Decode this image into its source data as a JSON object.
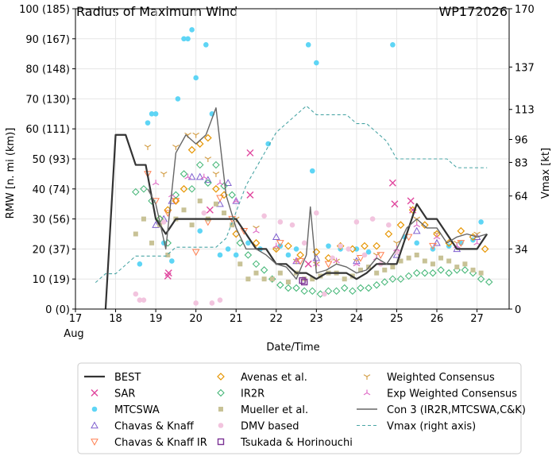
{
  "chart_data": {
    "type": "line",
    "title": "Radius of Maximum Wind",
    "storm_id": "WP172026",
    "xlabel": "Date/Time",
    "ylabel_left": "RMW [n. mi (km)]",
    "ylabel_right": "Vmax [kt]",
    "xlim": [
      17,
      27.8
    ],
    "ylim": [
      0,
      100
    ],
    "y2lim": [
      0,
      170
    ],
    "x_ticks": [
      17,
      18,
      19,
      20,
      21,
      22,
      23,
      24,
      25,
      26,
      27
    ],
    "x_tick_labels": [
      "17",
      "18",
      "19",
      "20",
      "21",
      "22",
      "23",
      "24",
      "25",
      "26",
      "27"
    ],
    "x_month_label": "Aug",
    "y_ticks": [
      0,
      10,
      20,
      30,
      40,
      50,
      60,
      70,
      80,
      90,
      100
    ],
    "y_tick_labels": [
      "0 (0)",
      "10 (19)",
      "20 (37)",
      "30 (56)",
      "40 (74)",
      "50 (93)",
      "60 (111)",
      "70 (130)",
      "80 (148)",
      "90 (167)",
      "100 (185)"
    ],
    "y2_ticks": [
      0,
      34,
      64,
      83,
      96,
      113,
      137,
      170
    ],
    "y2_tick_labels": [
      "0",
      "34",
      "64",
      "83",
      "96",
      "113",
      "137",
      "170"
    ],
    "grid": true,
    "legend_placement": "bottom",
    "series": [
      {
        "name": "BEST",
        "kind": "line",
        "color": "#333333",
        "x": [
          17.75,
          18.0,
          18.25,
          18.5,
          18.75,
          19.0,
          19.25,
          19.5,
          19.75,
          20.0,
          20.25,
          20.5,
          20.75,
          21.0,
          21.25,
          21.5,
          21.75,
          22.0,
          22.25,
          22.5,
          22.75,
          23.0,
          23.25,
          23.5,
          23.75,
          24.0,
          24.25,
          24.5,
          24.75,
          25.0,
          25.25,
          25.5,
          25.75,
          26.0,
          26.25,
          26.5,
          26.75,
          27.0,
          27.25
        ],
        "y": [
          0,
          58,
          58,
          48,
          48,
          30,
          25,
          30,
          30,
          30,
          30,
          30,
          30,
          30,
          25,
          20,
          20,
          15,
          15,
          12,
          12,
          10,
          12,
          12,
          12,
          10,
          12,
          15,
          15,
          15,
          25,
          35,
          30,
          30,
          25,
          20,
          20,
          20,
          25
        ]
      },
      {
        "name": "SAR",
        "kind": "marker",
        "marker": "x",
        "color": "#e0479e",
        "x": [
          19.3,
          19.32,
          20.35,
          21.35,
          21.35,
          22.8,
          24.9,
          24.95,
          25.35,
          25.4
        ],
        "y": [
          11,
          12,
          33,
          52,
          38,
          15,
          42,
          35,
          36,
          33
        ]
      },
      {
        "name": "MTCSWA",
        "kind": "marker",
        "marker": "circle",
        "color": "#5ed5f5",
        "x": [
          18.6,
          18.8,
          18.9,
          19.0,
          19.2,
          19.4,
          19.55,
          19.7,
          19.8,
          19.9,
          20.0,
          20.1,
          20.25,
          20.4,
          20.6,
          20.8,
          21.0,
          21.3,
          21.6,
          21.8,
          22.1,
          22.3,
          22.5,
          22.8,
          22.9,
          23.0,
          23.3,
          23.6,
          24.0,
          24.3,
          24.9,
          25.2,
          25.5,
          25.9,
          26.3,
          26.6,
          26.9,
          27.1
        ],
        "y": [
          15,
          62,
          65,
          65,
          22,
          16,
          70,
          90,
          90,
          93,
          77,
          26,
          88,
          65,
          18,
          20,
          18,
          22,
          20,
          55,
          21,
          18,
          20,
          88,
          46,
          82,
          21,
          20,
          20,
          19,
          88,
          24,
          22,
          20,
          21,
          22,
          23,
          29
        ]
      },
      {
        "name": "Chavas & Knaff",
        "kind": "marker",
        "marker": "triangle-up",
        "color": "#7f5fcf",
        "x": [
          19.0,
          19.2,
          19.4,
          19.9,
          20.1,
          20.3,
          20.6,
          20.8,
          21.0,
          22.0,
          22.5,
          23.0,
          24.0,
          25.0,
          25.5,
          26.0,
          26.5,
          27.0
        ],
        "y": [
          28,
          30,
          36,
          44,
          44,
          43,
          35,
          42,
          36,
          24,
          16,
          17,
          16,
          18,
          26,
          22,
          20,
          24
        ]
      },
      {
        "name": "Chavas & Knaff IR",
        "kind": "marker",
        "marker": "triangle-down",
        "color": "#ff7f50",
        "x": [
          18.8,
          19.0,
          19.3,
          19.5,
          20.0,
          20.3,
          20.6,
          20.9,
          21.2,
          22.1,
          22.6,
          23.3,
          24.1,
          24.6,
          25.3,
          25.9,
          26.6
        ],
        "y": [
          45,
          36,
          32,
          36,
          19,
          29,
          37,
          30,
          26,
          22,
          16,
          15,
          17,
          18,
          24,
          21,
          22
        ]
      },
      {
        "name": "Avenas et al.",
        "kind": "marker",
        "marker": "diamond",
        "color": "#e69500",
        "x": [
          19.1,
          19.3,
          19.5,
          19.7,
          19.9,
          20.1,
          20.3,
          20.5,
          20.7,
          21.0,
          21.5,
          22.0,
          22.3,
          22.6,
          23.0,
          23.3,
          23.6,
          23.9,
          24.2,
          24.5,
          24.8,
          25.1,
          25.4,
          25.7,
          26.0,
          26.3,
          26.6,
          26.9,
          27.2
        ],
        "y": [
          30,
          33,
          36,
          40,
          53,
          55,
          57,
          40,
          38,
          25,
          22,
          20,
          21,
          18,
          19,
          17,
          21,
          20,
          21,
          21,
          25,
          28,
          33,
          28,
          25,
          22,
          26,
          24,
          20
        ]
      },
      {
        "name": "IR2R",
        "kind": "marker",
        "marker": "diamond-open",
        "color": "#3cb371",
        "x": [
          18.5,
          18.7,
          18.9,
          19.1,
          19.3,
          19.5,
          19.7,
          19.9,
          20.1,
          20.3,
          20.5,
          20.7,
          20.9,
          21.1,
          21.3,
          21.5,
          21.7,
          21.9,
          22.1,
          22.3,
          22.5,
          22.7,
          22.9,
          23.1,
          23.3,
          23.5,
          23.7,
          23.9,
          24.1,
          24.3,
          24.5,
          24.7,
          24.9,
          25.1,
          25.3,
          25.5,
          25.7,
          25.9,
          26.1,
          26.3,
          26.5,
          26.7,
          26.9,
          27.1,
          27.3
        ],
        "y": [
          39,
          40,
          36,
          30,
          22,
          38,
          45,
          40,
          48,
          42,
          48,
          41,
          38,
          22,
          18,
          15,
          13,
          10,
          8,
          7,
          7,
          6,
          6,
          5,
          6,
          6,
          7,
          6,
          7,
          7,
          8,
          9,
          10,
          10,
          11,
          12,
          12,
          12,
          13,
          12,
          13,
          13,
          12,
          10,
          9
        ]
      },
      {
        "name": "Mueller et al.",
        "kind": "marker",
        "marker": "square",
        "color": "#c8c296",
        "x": [
          18.5,
          18.7,
          18.9,
          19.1,
          19.3,
          19.5,
          19.7,
          19.9,
          20.1,
          20.3,
          20.5,
          20.7,
          20.9,
          21.1,
          21.3,
          21.5,
          21.7,
          21.9,
          22.1,
          22.3,
          22.5,
          22.7,
          22.9,
          23.1,
          23.3,
          23.5,
          23.7,
          23.9,
          24.1,
          24.3,
          24.5,
          24.7,
          24.9,
          25.1,
          25.3,
          25.5,
          25.7,
          25.9,
          26.1,
          26.3,
          26.5,
          26.7,
          26.9,
          27.1
        ],
        "y": [
          25,
          30,
          22,
          28,
          18,
          30,
          33,
          28,
          36,
          30,
          35,
          32,
          28,
          15,
          10,
          12,
          10,
          10,
          12,
          9,
          12,
          10,
          10,
          11,
          12,
          12,
          10,
          11,
          13,
          14,
          12,
          13,
          14,
          16,
          17,
          18,
          16,
          15,
          17,
          16,
          14,
          15,
          13,
          12
        ]
      },
      {
        "name": "DMV based",
        "kind": "marker",
        "marker": "circle",
        "color": "#f2c4de",
        "x": [
          18.5,
          18.6,
          18.7,
          19.2,
          20.0,
          20.2,
          20.4,
          20.6,
          21.7,
          22.1,
          22.4,
          22.7,
          23.0,
          23.2,
          23.4,
          23.6,
          23.8,
          24.0,
          24.2,
          24.4,
          24.6,
          24.8,
          25.0
        ],
        "y": [
          5,
          3,
          3,
          29,
          2,
          32,
          2,
          3,
          31,
          29,
          28,
          22,
          32,
          5,
          17,
          21,
          20,
          29,
          18,
          30,
          15,
          28,
          19
        ]
      },
      {
        "name": "Tsukada & Horinouchi",
        "kind": "marker",
        "marker": "square-open",
        "color": "#7b3294",
        "x": [
          22.65,
          22.7
        ],
        "y": [
          9.5,
          9
        ]
      },
      {
        "name": "Weighted Consensus",
        "kind": "marker",
        "marker": "tri-down",
        "color": "#d4a04a",
        "x": [
          18.8,
          19.2,
          19.5,
          19.8,
          20.0,
          20.3,
          20.5,
          21.0,
          21.5,
          22.0,
          22.5,
          23.0,
          23.5,
          24.0,
          24.5,
          25.0,
          25.5,
          26.0,
          26.5,
          27.0
        ],
        "y": [
          54,
          45,
          54,
          58,
          58,
          50,
          45,
          30,
          27,
          20,
          16,
          15,
          16,
          16,
          18,
          22,
          30,
          25,
          22,
          25
        ]
      },
      {
        "name": "Exp Weighted Consensus",
        "kind": "marker",
        "marker": "tri-up",
        "color": "#e070c8",
        "x": [
          19.0,
          19.4,
          19.8,
          20.2,
          20.6,
          21.0,
          21.5,
          22.0,
          22.5,
          23.0,
          23.5,
          24.0,
          24.5,
          25.0,
          25.5,
          26.0,
          26.5,
          27.0
        ],
        "y": [
          42,
          38,
          44,
          44,
          42,
          36,
          26,
          21,
          16,
          15,
          16,
          15,
          17,
          20,
          28,
          24,
          21,
          22
        ]
      },
      {
        "name": "Con 3 (IR2R,MTCSWA,C&K)",
        "kind": "line",
        "color": "#666666",
        "x": [
          18.8,
          19.0,
          19.25,
          19.5,
          19.75,
          20.0,
          20.25,
          20.5,
          20.75,
          21.0,
          21.25,
          21.5,
          21.75,
          22.0,
          22.25,
          22.5,
          22.75,
          22.85,
          23.0,
          23.25,
          23.5,
          23.75,
          24.0,
          24.25,
          24.5,
          24.75,
          25.0,
          25.25,
          25.5,
          25.75,
          26.0,
          26.25,
          26.5,
          26.75,
          27.0,
          27.25
        ],
        "y": [
          40,
          35,
          20,
          52,
          58,
          55,
          58,
          67,
          38,
          27,
          20,
          20,
          18,
          15,
          14,
          10,
          18,
          34,
          12,
          13,
          15,
          14,
          12,
          13,
          17,
          15,
          20,
          27,
          30,
          27,
          27,
          22,
          24,
          25,
          24,
          25
        ]
      },
      {
        "name": "Vmax (right axis)",
        "kind": "line",
        "axis": "right",
        "color": "#4aa5a5",
        "x": [
          17.5,
          17.75,
          18.0,
          18.25,
          18.5,
          18.75,
          19.0,
          19.25,
          19.5,
          19.75,
          20.0,
          20.25,
          20.5,
          20.75,
          21.0,
          21.25,
          21.5,
          21.75,
          22.0,
          22.25,
          22.5,
          22.75,
          23.0,
          23.25,
          23.5,
          23.75,
          24.0,
          24.25,
          24.5,
          24.75,
          25.0,
          25.25,
          25.5,
          25.75,
          26.0,
          26.25,
          26.5,
          26.75,
          27.0,
          27.25
        ],
        "y": [
          15,
          20,
          20,
          25,
          30,
          30,
          30,
          30,
          35,
          35,
          35,
          35,
          35,
          40,
          55,
          70,
          80,
          90,
          100,
          105,
          110,
          115,
          110,
          110,
          110,
          110,
          105,
          105,
          100,
          95,
          85,
          85,
          85,
          85,
          85,
          85,
          80,
          80,
          80,
          80
        ]
      }
    ]
  }
}
